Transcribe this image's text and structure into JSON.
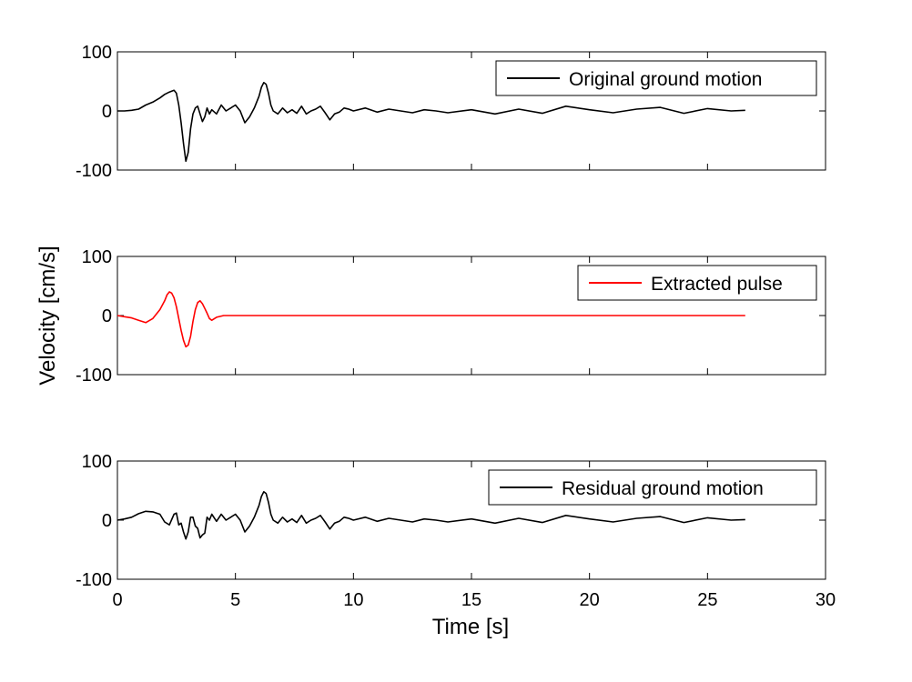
{
  "chart_data": {
    "type": "line",
    "ylabel": "Velocity [cm/s]",
    "xlabel": "Time [s]",
    "xlim": [
      0,
      30
    ],
    "xticks": [
      "0",
      "5",
      "10",
      "15",
      "20",
      "25",
      "30"
    ],
    "yticks": [
      "-100",
      "0",
      "100"
    ],
    "grid": false,
    "legend_position": "top-right",
    "colors": {
      "original": "#000000",
      "pulse": "#ff0000",
      "residual": "#000000"
    },
    "panels": [
      {
        "legend": "Original ground motion",
        "color": "#000000",
        "ylim": [
          -100,
          100
        ],
        "series": {
          "name": "Original ground motion",
          "x": [
            0,
            0.3,
            0.6,
            0.9,
            1.2,
            1.5,
            1.8,
            2.0,
            2.2,
            2.4,
            2.5,
            2.6,
            2.7,
            2.8,
            2.9,
            3.0,
            3.1,
            3.2,
            3.3,
            3.4,
            3.5,
            3.6,
            3.7,
            3.8,
            3.9,
            4.0,
            4.2,
            4.4,
            4.6,
            4.8,
            5.0,
            5.2,
            5.4,
            5.6,
            5.8,
            6.0,
            6.1,
            6.2,
            6.3,
            6.4,
            6.5,
            6.6,
            6.8,
            7.0,
            7.2,
            7.4,
            7.6,
            7.8,
            8.0,
            8.2,
            8.4,
            8.6,
            8.8,
            9.0,
            9.2,
            9.4,
            9.6,
            9.8,
            10.0,
            10.5,
            11.0,
            11.5,
            12.0,
            12.5,
            13.0,
            13.5,
            14.0,
            15.0,
            16.0,
            17.0,
            18.0,
            19.0,
            20.0,
            21.0,
            22.0,
            23.0,
            24.0,
            25.0,
            26.0,
            26.6
          ],
          "y": [
            0,
            0,
            1,
            3,
            10,
            15,
            22,
            28,
            32,
            35,
            30,
            10,
            -20,
            -55,
            -85,
            -70,
            -30,
            -5,
            5,
            8,
            -5,
            -18,
            -10,
            5,
            -5,
            2,
            -5,
            10,
            0,
            5,
            10,
            0,
            -20,
            -10,
            5,
            25,
            40,
            48,
            45,
            30,
            10,
            0,
            -5,
            5,
            -3,
            2,
            -4,
            8,
            -5,
            0,
            3,
            8,
            -3,
            -15,
            -5,
            -2,
            5,
            3,
            0,
            5,
            -2,
            3,
            0,
            -3,
            2,
            0,
            -3,
            2,
            -5,
            3,
            -4,
            8,
            2,
            -3,
            3,
            6,
            -4,
            4,
            0,
            1
          ]
        }
      },
      {
        "legend": "Extracted pulse",
        "color": "#ff0000",
        "ylim": [
          -100,
          100
        ],
        "series": {
          "name": "Extracted pulse",
          "x": [
            0,
            0.3,
            0.6,
            0.9,
            1.2,
            1.5,
            1.8,
            2.0,
            2.1,
            2.2,
            2.3,
            2.4,
            2.5,
            2.6,
            2.7,
            2.8,
            2.9,
            3.0,
            3.1,
            3.2,
            3.3,
            3.4,
            3.5,
            3.6,
            3.7,
            3.8,
            3.9,
            4.0,
            4.2,
            4.5,
            5.0,
            6.0,
            7.0,
            10,
            15,
            20,
            26.6
          ],
          "y": [
            0,
            -2,
            -4,
            -8,
            -12,
            -5,
            10,
            25,
            35,
            40,
            38,
            30,
            15,
            -5,
            -25,
            -42,
            -53,
            -50,
            -35,
            -10,
            10,
            22,
            25,
            20,
            12,
            4,
            -5,
            -8,
            -3,
            0,
            0,
            0,
            0,
            0,
            0,
            0,
            0
          ]
        }
      },
      {
        "legend": "Residual ground motion",
        "color": "#000000",
        "ylim": [
          -100,
          100
        ],
        "series": {
          "name": "Residual ground motion",
          "x": [
            0,
            0.3,
            0.6,
            0.9,
            1.2,
            1.5,
            1.8,
            2.0,
            2.2,
            2.4,
            2.5,
            2.6,
            2.7,
            2.8,
            2.9,
            3.0,
            3.1,
            3.2,
            3.3,
            3.4,
            3.5,
            3.6,
            3.7,
            3.8,
            3.9,
            4.0,
            4.2,
            4.4,
            4.6,
            4.8,
            5.0,
            5.2,
            5.4,
            5.6,
            5.8,
            6.0,
            6.1,
            6.2,
            6.3,
            6.4,
            6.5,
            6.6,
            6.8,
            7.0,
            7.2,
            7.4,
            7.6,
            7.8,
            8.0,
            8.2,
            8.4,
            8.6,
            8.8,
            9.0,
            9.2,
            9.4,
            9.6,
            9.8,
            10.0,
            10.5,
            11.0,
            11.5,
            12.0,
            12.5,
            13.0,
            13.5,
            14.0,
            15.0,
            16.0,
            17.0,
            18.0,
            19.0,
            20.0,
            21.0,
            22.0,
            23.0,
            24.0,
            25.0,
            26.0,
            26.6
          ],
          "y": [
            0,
            2,
            5,
            11,
            15,
            14,
            10,
            -3,
            -8,
            10,
            12,
            -8,
            -5,
            -20,
            -32,
            -20,
            5,
            5,
            -10,
            -14,
            -30,
            -25,
            -22,
            5,
            0,
            10,
            -2,
            10,
            0,
            5,
            10,
            0,
            -20,
            -10,
            5,
            25,
            40,
            48,
            45,
            30,
            10,
            0,
            -5,
            5,
            -3,
            2,
            -4,
            8,
            -5,
            0,
            3,
            8,
            -3,
            -15,
            -5,
            -2,
            5,
            3,
            0,
            5,
            -2,
            3,
            0,
            -3,
            2,
            0,
            -3,
            2,
            -5,
            3,
            -4,
            8,
            2,
            -3,
            3,
            6,
            -4,
            4,
            0,
            1
          ]
        }
      }
    ]
  }
}
